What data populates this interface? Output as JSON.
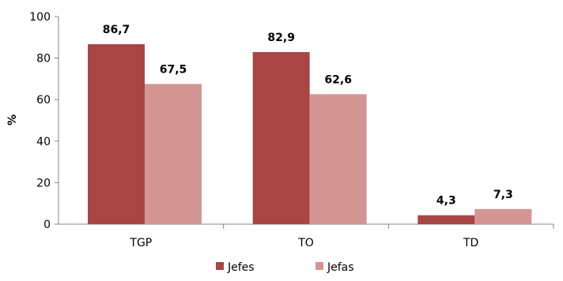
{
  "chart_data": {
    "type": "bar",
    "categories": [
      "TGP",
      "TO",
      "TD"
    ],
    "series": [
      {
        "name": "Jefes",
        "values": [
          86.7,
          82.9,
          4.3
        ],
        "labels": [
          "86,7",
          "82,9",
          "4,3"
        ],
        "color": "#a84545"
      },
      {
        "name": "Jefas",
        "values": [
          67.5,
          62.6,
          7.3
        ],
        "labels": [
          "67,5",
          "62,6",
          "7,3"
        ],
        "color": "#d39594"
      }
    ],
    "title": "",
    "xlabel": "",
    "ylabel": "%",
    "ylim": [
      0,
      100
    ],
    "yticks": [
      0,
      20,
      40,
      60,
      80,
      100
    ],
    "grid": false,
    "legend_position": "bottom"
  }
}
